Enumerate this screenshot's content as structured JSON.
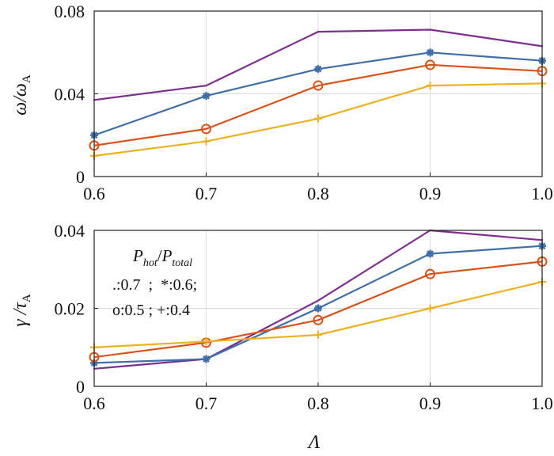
{
  "chart_data": [
    {
      "type": "line",
      "x": [
        0.6,
        0.7,
        0.8,
        0.9,
        1.0
      ],
      "xticks": [
        "0.6",
        "0.7",
        "0.8",
        "0.9",
        "1.0"
      ],
      "yticks": [
        "0",
        "0.04",
        "0.08"
      ],
      "xlim": [
        0.6,
        1.0
      ],
      "ylim": [
        0,
        0.08
      ],
      "ylabel_main": "ω/ω",
      "ylabel_sub": "A",
      "grid": true,
      "series": [
        {
          "name": ".:0.7",
          "color": "#7E2F8E",
          "marker": "none",
          "values": [
            0.037,
            0.044,
            0.07,
            0.071,
            0.063
          ]
        },
        {
          "name": "*:0.6",
          "color": "#3F6EA8",
          "marker": "star",
          "values": [
            0.02,
            0.039,
            0.052,
            0.06,
            0.056
          ]
        },
        {
          "name": "o:0.5",
          "color": "#D95319",
          "marker": "circle",
          "values": [
            0.015,
            0.023,
            0.044,
            0.054,
            0.051
          ]
        },
        {
          "name": "+:0.4",
          "color": "#EDB120",
          "marker": "plus",
          "values": [
            0.01,
            0.017,
            0.028,
            0.044,
            0.045
          ]
        }
      ]
    },
    {
      "type": "line",
      "x": [
        0.6,
        0.7,
        0.8,
        0.9,
        1.0
      ],
      "xticks": [
        "0.6",
        "0.7",
        "0.8",
        "0.9",
        "1.0"
      ],
      "yticks": [
        "0",
        "0.02",
        "0.04"
      ],
      "xlim": [
        0.6,
        1.0
      ],
      "ylim": [
        0,
        0.04
      ],
      "xlabel": "Λ",
      "ylabel_main": "γ /τ",
      "ylabel_sub": "A",
      "grid": true,
      "legend": {
        "title_main1": "P",
        "title_sub1": "hot",
        "title_sep": "/",
        "title_main2": "P",
        "title_sub2": "total",
        "line1": ".:0.7  ;  *:0.6;",
        "line2": "o:0.5 ; +:0.4",
        "placement": "top-left"
      },
      "series": [
        {
          "name": ".:0.7",
          "color": "#7E2F8E",
          "marker": "none",
          "values": [
            0.0045,
            0.007,
            0.022,
            0.04,
            0.0375
          ]
        },
        {
          "name": "*:0.6",
          "color": "#3F6EA8",
          "marker": "star",
          "values": [
            0.006,
            0.007,
            0.02,
            0.034,
            0.036
          ]
        },
        {
          "name": "o:0.5",
          "color": "#D95319",
          "marker": "circle",
          "values": [
            0.0075,
            0.0112,
            0.017,
            0.0288,
            0.032
          ]
        },
        {
          "name": "+:0.4",
          "color": "#EDB120",
          "marker": "plus",
          "values": [
            0.01,
            0.0115,
            0.0132,
            0.02,
            0.0268
          ]
        }
      ]
    }
  ]
}
